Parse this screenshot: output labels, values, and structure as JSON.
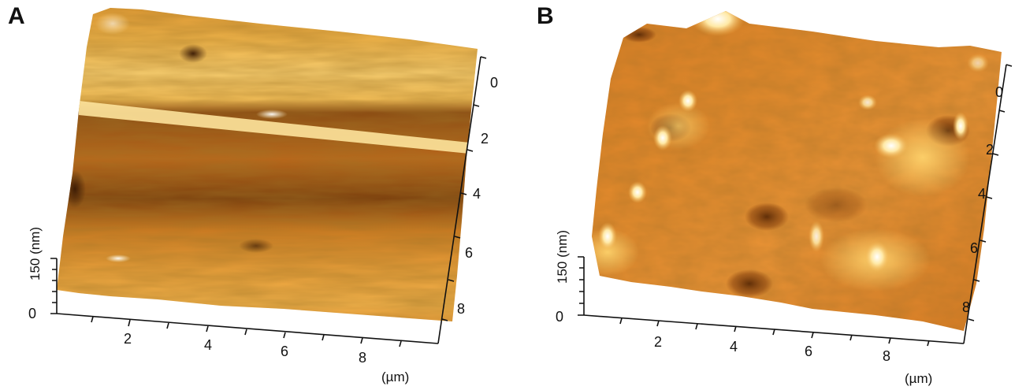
{
  "panels": [
    {
      "letter": "A",
      "z_axis": {
        "label": "150 (nm)",
        "zero": "0"
      },
      "x_axis": {
        "ticks": [
          "2",
          "4",
          "6",
          "8"
        ],
        "unit": "(µm)"
      },
      "y_axis": {
        "ticks": [
          "0",
          "2",
          "4",
          "6",
          "8"
        ]
      },
      "surface": {
        "texture": "horizontal-band",
        "base_color": "#d9861f",
        "highlight_color": "#fff2c6",
        "shadow_color": "#6a3408"
      }
    },
    {
      "letter": "B",
      "z_axis": {
        "label": "150 (nm)",
        "zero": "0"
      },
      "x_axis": {
        "ticks": [
          "2",
          "4",
          "6",
          "8"
        ],
        "unit": "(µm)"
      },
      "y_axis": {
        "ticks": [
          "0",
          "2",
          "4",
          "6",
          "8"
        ]
      },
      "surface": {
        "texture": "peaks-and-pits",
        "base_color": "#e0862a",
        "highlight_color": "#ffffff",
        "shadow_color": "#6a3408"
      }
    }
  ]
}
